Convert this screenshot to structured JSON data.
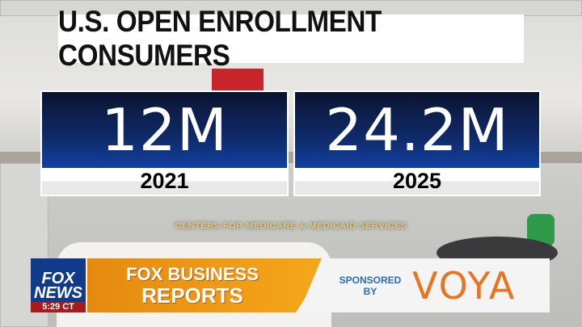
{
  "headline": "U.S. OPEN ENROLLMENT CONSUMERS",
  "stats": [
    {
      "value": "12M",
      "year": "2021"
    },
    {
      "value": "24.2M",
      "year": "2025"
    }
  ],
  "source": "CENTERS FOR MEDICARE & MEDICAID SERVICES",
  "lower_third": {
    "network_logo": "FOX NEWS",
    "clock": "5:29 CT",
    "segment_line1": "FOX BUSINESS",
    "segment_line2": "REPORTS",
    "sponsored_by": "SPONSORED BY",
    "sponsor": "VOYA"
  },
  "colors": {
    "stat_blue": "#0f2a6a",
    "segment_orange": "#f5a81a",
    "sponsor_orange": "#e9731f",
    "sponsored_blue": "#2a6bb8",
    "source_gold": "#e4c77a"
  }
}
